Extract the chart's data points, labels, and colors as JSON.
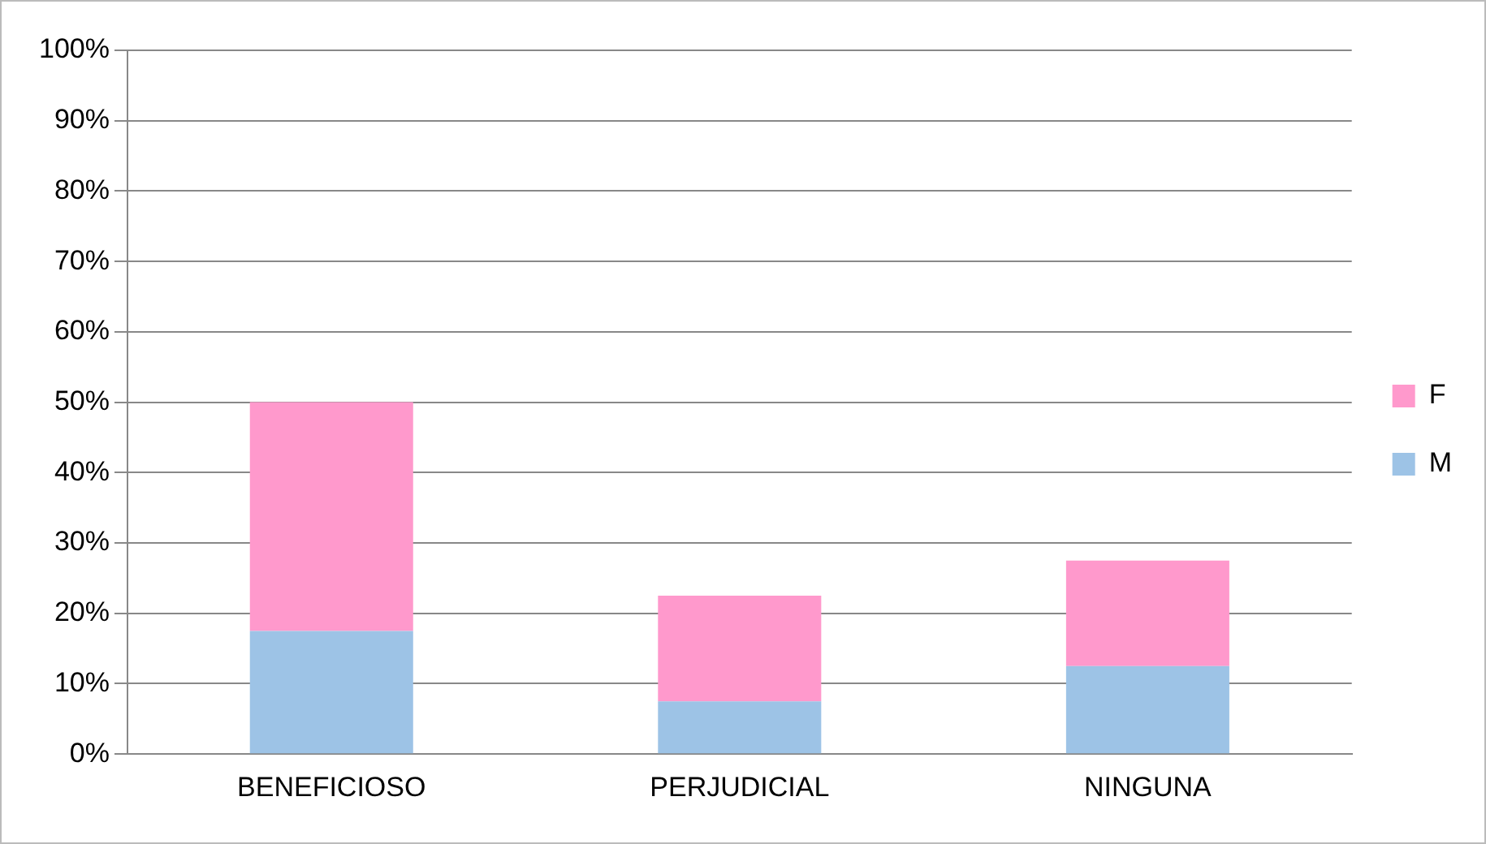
{
  "chart_data": {
    "type": "bar",
    "stacked": true,
    "categories": [
      "BENEFICIOSO",
      "PERJUDICIAL",
      "NINGUNA"
    ],
    "series": [
      {
        "name": "M",
        "color": "#9dc3e6",
        "values": [
          17.5,
          7.5,
          12.5
        ]
      },
      {
        "name": "F",
        "color": "#ff99cc",
        "values": [
          32.5,
          15,
          15
        ]
      }
    ],
    "ylim": [
      0,
      100
    ],
    "yticks": [
      {
        "value": 0,
        "label": "0%"
      },
      {
        "value": 10,
        "label": "10%"
      },
      {
        "value": 20,
        "label": "20%"
      },
      {
        "value": 30,
        "label": "30%"
      },
      {
        "value": 40,
        "label": "40%"
      },
      {
        "value": 50,
        "label": "50%"
      },
      {
        "value": 60,
        "label": "60%"
      },
      {
        "value": 70,
        "label": "70%"
      },
      {
        "value": 80,
        "label": "80%"
      },
      {
        "value": 90,
        "label": "90%"
      },
      {
        "value": 100,
        "label": "100%"
      }
    ],
    "grid": "y",
    "legend": "right"
  }
}
